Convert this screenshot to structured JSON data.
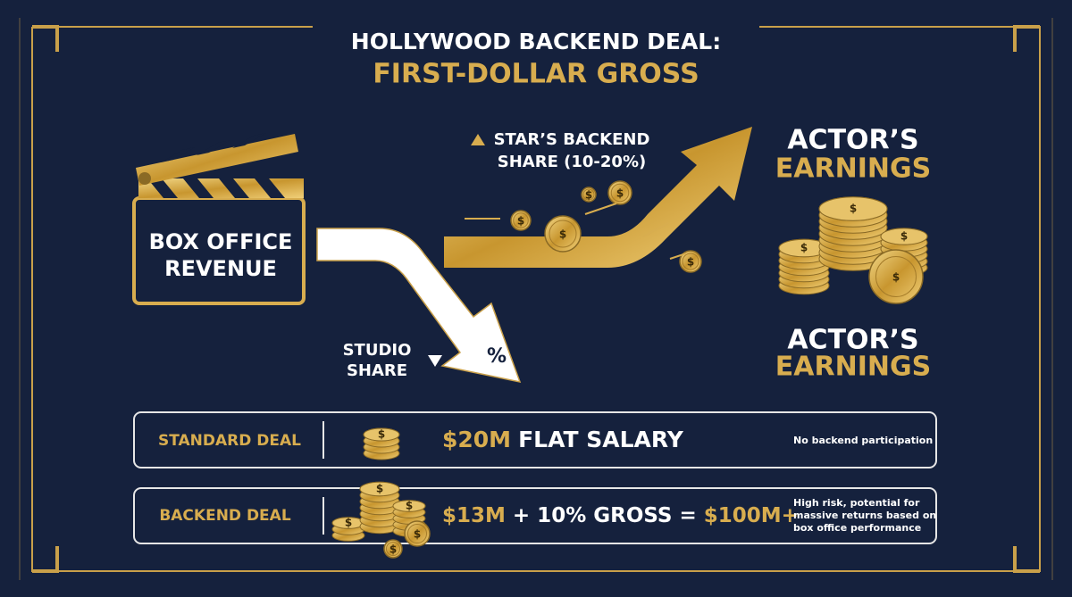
{
  "header": {
    "title": "HOLLYWOOD BACKEND DEAL:",
    "subtitle": "FIRST-DOLLAR GROSS"
  },
  "diagram": {
    "source": [
      "BOX OFFICE",
      "REVENUE"
    ],
    "star_share": [
      "STAR’S BACKEND",
      "SHARE (10-20%)"
    ],
    "studio_share": [
      "STUDIO",
      "SHARE"
    ],
    "percent_symbol": "%",
    "earnings_top": [
      "ACTOR’S",
      "EARNINGS"
    ],
    "earnings_bottom": [
      "ACTOR’S",
      "EARNINGS"
    ],
    "coin_symbol": "$"
  },
  "deals": [
    {
      "label": "STANDARD DEAL",
      "amount": [
        "$20M",
        "FLAT SALARY"
      ],
      "note": [
        "No backend participation"
      ]
    },
    {
      "label": "BACKEND DEAL",
      "amount": [
        "$13M",
        "+ 10% GROSS =",
        "$100M+"
      ],
      "note": [
        "High risk, potential for",
        "massive returns based on",
        "box office performance"
      ]
    }
  ]
}
